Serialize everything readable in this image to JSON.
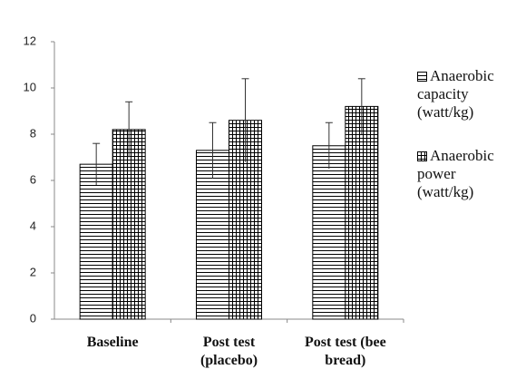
{
  "chart_data": {
    "type": "bar",
    "categories": [
      "Baseline",
      "Post test (placebo)",
      "Post test (bee bread)"
    ],
    "series": [
      {
        "name": "Anaerobic capacity (watt/kg)",
        "color": "#000000",
        "pattern": "horizontal",
        "values": [
          6.7,
          7.3,
          7.5
        ],
        "errors": [
          0.9,
          1.2,
          1.0
        ]
      },
      {
        "name": "Anaerobic power (watt/kg)",
        "color": "#000000",
        "pattern": "grid",
        "values": [
          8.2,
          8.6,
          9.2
        ],
        "errors": [
          1.2,
          1.8,
          1.2
        ]
      }
    ],
    "ylim": [
      0,
      12
    ],
    "yticks": [
      0,
      2,
      4,
      6,
      8,
      10,
      12
    ],
    "grid": false
  }
}
